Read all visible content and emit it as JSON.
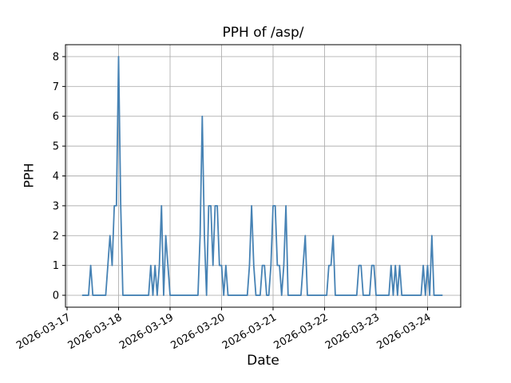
{
  "chart_data": {
    "type": "line",
    "title": "PPH of /asp/",
    "xlabel": "Date",
    "ylabel": "PPH",
    "grid": true,
    "legend": false,
    "line_color": "#4682b4",
    "grid_color": "#b0b0b0",
    "spine_color": "#000000",
    "x_start_timestamp": "2026-03-17 07:00",
    "x_interval": "1 hour",
    "ylim": [
      -0.4,
      8.4
    ],
    "xlim_hours_from_start": [
      -7.75,
      176.45
    ],
    "y_ticks": [
      0,
      1,
      2,
      3,
      4,
      5,
      6,
      7,
      8
    ],
    "x_ticks": [
      {
        "label": "2026-03-17",
        "hour_offset": -7
      },
      {
        "label": "2026-03-18",
        "hour_offset": 17
      },
      {
        "label": "2026-03-19",
        "hour_offset": 41
      },
      {
        "label": "2026-03-20",
        "hour_offset": 65
      },
      {
        "label": "2026-03-21",
        "hour_offset": 89
      },
      {
        "label": "2026-03-22",
        "hour_offset": 113
      },
      {
        "label": "2026-03-23",
        "hour_offset": 137
      },
      {
        "label": "2026-03-24",
        "hour_offset": 161
      }
    ],
    "hourly_values": [
      0,
      0,
      0,
      0,
      1,
      0,
      0,
      0,
      0,
      0,
      0,
      0,
      1,
      2,
      1,
      3,
      3,
      8,
      3,
      0,
      0,
      0,
      0,
      0,
      0,
      0,
      0,
      0,
      0,
      0,
      0,
      0,
      1,
      0,
      1,
      0,
      1,
      3,
      0,
      2,
      1,
      0,
      0,
      0,
      0,
      0,
      0,
      0,
      0,
      0,
      0,
      0,
      0,
      0,
      0,
      2,
      6,
      2,
      0,
      3,
      3,
      1,
      3,
      3,
      1,
      1,
      0,
      1,
      0,
      0,
      0,
      0,
      0,
      0,
      0,
      0,
      0,
      0,
      1,
      3,
      1,
      0,
      0,
      0,
      1,
      1,
      0,
      0,
      1,
      3,
      3,
      1,
      1,
      0,
      1,
      3,
      0,
      0,
      0,
      0,
      0,
      0,
      0,
      1,
      2,
      0,
      0,
      0,
      0,
      0,
      0,
      0,
      0,
      0,
      0,
      1,
      1,
      2,
      0,
      0,
      0,
      0,
      0,
      0,
      0,
      0,
      0,
      0,
      0,
      1,
      1,
      0,
      0,
      0,
      0,
      1,
      1,
      0,
      0,
      0,
      0,
      0,
      0,
      0,
      1,
      0,
      1,
      0,
      1,
      0,
      0,
      0,
      0,
      0,
      0,
      0,
      0,
      0,
      0,
      1,
      0,
      1,
      0,
      2,
      0,
      0,
      0,
      0,
      0
    ]
  }
}
